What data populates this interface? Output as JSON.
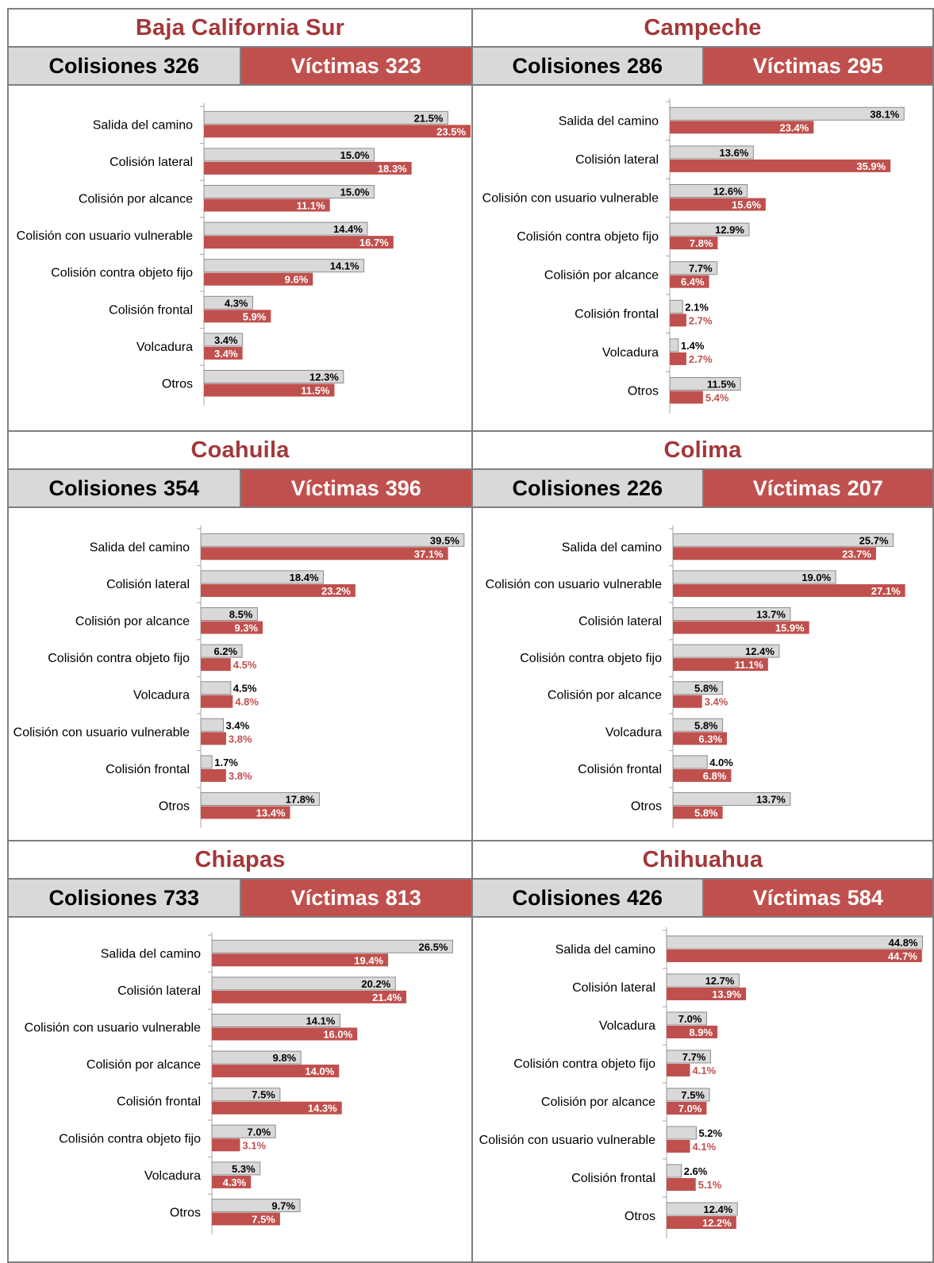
{
  "colors": {
    "title": "#a4373a",
    "colisiones_bar": "#d9d9d9",
    "victimas_bar": "#c0504d",
    "border": "#7f7f7f"
  },
  "chart_data": [
    {
      "type": "bar",
      "title": "Baja California Sur",
      "colisiones_label": "Colisiones",
      "colisiones": 326,
      "victimas_label": "Víctimas",
      "victimas": 323,
      "categories": [
        "Salida del camino",
        "Colisión lateral",
        "Colisión por alcance",
        "Colisión con usuario vulnerable",
        "Colisión contra objeto fijo",
        "Colisión frontal",
        "Volcadura",
        "Otros"
      ],
      "series": [
        {
          "values": [
            21.5,
            15.0,
            15.0,
            14.4,
            14.1,
            4.3,
            3.4,
            12.3
          ],
          "color": "#d9d9d9"
        },
        {
          "values": [
            23.5,
            18.3,
            11.1,
            16.7,
            9.6,
            5.9,
            3.4,
            11.5
          ],
          "color": "#c0504d"
        }
      ]
    },
    {
      "type": "bar",
      "title": "Campeche",
      "colisiones_label": "Colisiones",
      "colisiones": 286,
      "victimas_label": "Víctimas",
      "victimas": 295,
      "categories": [
        "Salida del camino",
        "Colisión lateral",
        "Colisión con usuario vulnerable",
        "Colisión contra objeto fijo",
        "Colisión por alcance",
        "Colisión frontal",
        "Volcadura",
        "Otros"
      ],
      "series": [
        {
          "values": [
            38.1,
            13.6,
            12.6,
            12.9,
            7.7,
            2.1,
            1.4,
            11.5
          ],
          "color": "#d9d9d9"
        },
        {
          "values": [
            23.4,
            35.9,
            15.6,
            7.8,
            6.4,
            2.7,
            2.7,
            5.4
          ],
          "color": "#c0504d"
        }
      ]
    },
    {
      "type": "bar",
      "title": "Coahuila",
      "colisiones_label": "Colisiones",
      "colisiones": 354,
      "victimas_label": "Víctimas",
      "victimas": 396,
      "categories": [
        "Salida del camino",
        "Colisión lateral",
        "Colisión por alcance",
        "Colisión contra objeto fijo",
        "Volcadura",
        "Colisión con usuario vulnerable",
        "Colisión frontal",
        "Otros"
      ],
      "series": [
        {
          "values": [
            39.5,
            18.4,
            8.5,
            6.2,
            4.5,
            3.4,
            1.7,
            17.8
          ],
          "color": "#d9d9d9"
        },
        {
          "values": [
            37.1,
            23.2,
            9.3,
            4.5,
            4.8,
            3.8,
            3.8,
            13.4
          ],
          "color": "#c0504d"
        }
      ]
    },
    {
      "type": "bar",
      "title": "Colima",
      "colisiones_label": "Colisiones",
      "colisiones": 226,
      "victimas_label": "Víctimas",
      "victimas": 207,
      "categories": [
        "Salida del camino",
        "Colisión con usuario vulnerable",
        "Colisión lateral",
        "Colisión contra objeto fijo",
        "Colisión por alcance",
        "Volcadura",
        "Colisión frontal",
        "Otros"
      ],
      "series": [
        {
          "values": [
            25.7,
            19.0,
            13.7,
            12.4,
            5.8,
            5.8,
            4.0,
            13.7
          ],
          "color": "#d9d9d9"
        },
        {
          "values": [
            23.7,
            27.1,
            15.9,
            11.1,
            3.4,
            6.3,
            6.8,
            5.8
          ],
          "color": "#c0504d"
        }
      ]
    },
    {
      "type": "bar",
      "title": "Chiapas",
      "colisiones_label": "Colisiones",
      "colisiones": 733,
      "victimas_label": "Víctimas",
      "victimas": 813,
      "categories": [
        "Salida del camino",
        "Colisión lateral",
        "Colisión con usuario vulnerable",
        "Colisión por alcance",
        "Colisión frontal",
        "Colisión contra objeto fijo",
        "Volcadura",
        "Otros"
      ],
      "series": [
        {
          "values": [
            26.5,
            20.2,
            14.1,
            9.8,
            7.5,
            7.0,
            5.3,
            9.7
          ],
          "color": "#d9d9d9"
        },
        {
          "values": [
            19.4,
            21.4,
            16.0,
            14.0,
            14.3,
            3.1,
            4.3,
            7.5
          ],
          "color": "#c0504d"
        }
      ]
    },
    {
      "type": "bar",
      "title": "Chihuahua",
      "colisiones_label": "Colisiones",
      "colisiones": 426,
      "victimas_label": "Víctimas",
      "victimas": 584,
      "categories": [
        "Salida del camino",
        "Colisión lateral",
        "Volcadura",
        "Colisión contra objeto fijo",
        "Colisión por alcance",
        "Colisión con usuario vulnerable",
        "Colisión frontal",
        "Otros"
      ],
      "series": [
        {
          "values": [
            44.8,
            12.7,
            7.0,
            7.7,
            7.5,
            5.2,
            2.6,
            12.4
          ],
          "color": "#d9d9d9"
        },
        {
          "values": [
            44.7,
            13.9,
            8.9,
            4.1,
            7.0,
            4.1,
            5.1,
            12.2
          ],
          "color": "#c0504d"
        }
      ]
    }
  ]
}
